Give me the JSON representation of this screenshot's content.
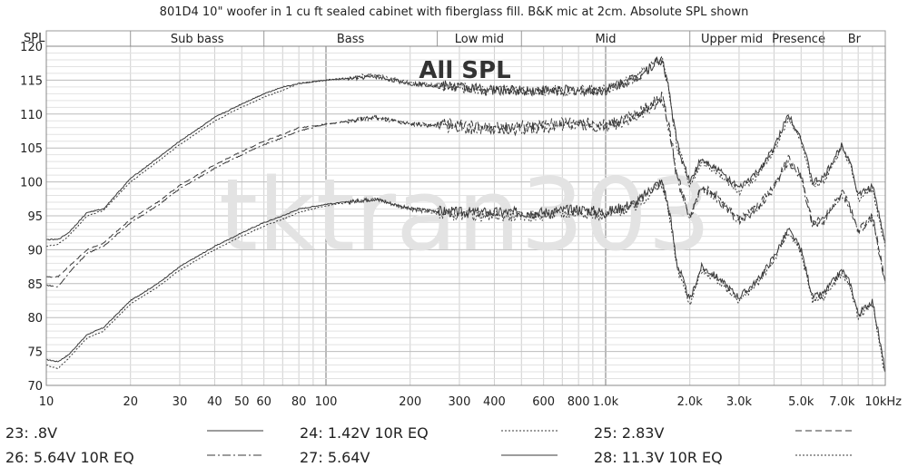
{
  "title": "801D4 10\" woofer in 1 cu ft sealed cabinet with fiberglass fill. B&K mic at 2cm. Absolute SPL shown",
  "watermark": "tktran303",
  "overlay_label": "All SPL",
  "chart_data": {
    "type": "line",
    "title": "801D4 10\" woofer in 1 cu ft sealed cabinet with fiberglass fill. B&K mic at 2cm. Absolute SPL shown",
    "xlabel": "",
    "ylabel": "SPL",
    "xscale": "log",
    "xlim": [
      10,
      10000
    ],
    "ylim": [
      70,
      120
    ],
    "grid": true,
    "x_tick_labels": [
      "10",
      "20",
      "30",
      "40",
      "50",
      "60",
      "80",
      "100",
      "200",
      "300",
      "400",
      "600",
      "800",
      "1.0k",
      "2.0k",
      "3.0k",
      "5.0k",
      "7.0k",
      "10kHz"
    ],
    "x_tick_values": [
      10,
      20,
      30,
      40,
      50,
      60,
      80,
      100,
      200,
      300,
      400,
      600,
      800,
      1000,
      2000,
      3000,
      5000,
      7000,
      10000
    ],
    "y_ticks": [
      70,
      75,
      80,
      85,
      90,
      95,
      100,
      105,
      110,
      115,
      120
    ],
    "bands": [
      {
        "label": "Sub bass",
        "from": 20,
        "to": 60
      },
      {
        "label": "Bass",
        "from": 60,
        "to": 250
      },
      {
        "label": "Low mid",
        "from": 250,
        "to": 500
      },
      {
        "label": "Mid",
        "from": 500,
        "to": 2000
      },
      {
        "label": "Upper mid",
        "from": 2000,
        "to": 4000
      },
      {
        "label": "Presence",
        "from": 4000,
        "to": 6000
      },
      {
        "label": "Br",
        "from": 6000,
        "to": 10000
      }
    ],
    "series": [
      {
        "name": "23: .8V",
        "dash": "none",
        "x": [
          10,
          11,
          12,
          14,
          16,
          20,
          25,
          30,
          40,
          50,
          60,
          70,
          80,
          100,
          150,
          200,
          300,
          400,
          600,
          800,
          1000,
          1300,
          1500,
          1600,
          1700,
          1800,
          2000,
          2200,
          2500,
          3000,
          3500,
          4000,
          4500,
          5000,
          5500,
          6000,
          7000,
          7500,
          8000,
          9000,
          10000
        ],
        "y": [
          73.8,
          73.5,
          74.5,
          77.5,
          78.5,
          82.5,
          85.0,
          87.5,
          90.5,
          92.5,
          94.0,
          95.0,
          96.0,
          96.7,
          97.5,
          96.0,
          95.5,
          95.5,
          95.5,
          96.0,
          95.5,
          97.0,
          99.5,
          100.0,
          95.0,
          88.0,
          82.5,
          87.5,
          86.0,
          83.0,
          85.5,
          89.0,
          93.0,
          90.0,
          83.0,
          83.5,
          87.0,
          85.0,
          80.5,
          82.5,
          72.0
        ]
      },
      {
        "name": "24: 1.42V 10R EQ",
        "dash": "2,2",
        "x": [
          10,
          11,
          12,
          14,
          16,
          20,
          25,
          30,
          40,
          50,
          60,
          70,
          80,
          100,
          150,
          200,
          300,
          400,
          600,
          800,
          1000,
          1300,
          1500,
          1600,
          1700,
          1800,
          2000,
          2200,
          2500,
          3000,
          3500,
          4000,
          4500,
          5000,
          5500,
          6000,
          7000,
          7500,
          8000,
          9000,
          10000
        ],
        "y": [
          73.0,
          72.5,
          74.0,
          77.0,
          78.0,
          82.0,
          84.5,
          87.0,
          90.0,
          92.0,
          93.5,
          94.5,
          95.5,
          96.5,
          97.5,
          96.0,
          95.0,
          95.0,
          95.0,
          95.5,
          95.0,
          96.5,
          99.0,
          99.5,
          94.5,
          87.5,
          82.0,
          87.0,
          85.5,
          82.5,
          85.0,
          88.5,
          92.5,
          89.5,
          82.5,
          83.0,
          86.5,
          84.5,
          80.0,
          82.0,
          71.5
        ]
      },
      {
        "name": "25: 2.83V",
        "dash": "7,4",
        "x": [
          10,
          11,
          12,
          14,
          16,
          20,
          25,
          30,
          40,
          50,
          60,
          70,
          80,
          100,
          150,
          200,
          300,
          400,
          600,
          800,
          1000,
          1300,
          1500,
          1600,
          1700,
          1800,
          2000,
          2200,
          2500,
          3000,
          3500,
          4000,
          4500,
          5000,
          5500,
          6000,
          7000,
          7500,
          8000,
          9000,
          10000
        ],
        "y": [
          86.0,
          86.0,
          87.5,
          90.0,
          91.0,
          94.5,
          97.0,
          99.5,
          102.5,
          104.5,
          106.0,
          107.0,
          108.0,
          108.5,
          109.5,
          108.5,
          108.5,
          108.0,
          108.5,
          109.0,
          108.5,
          110.0,
          112.0,
          112.5,
          107.5,
          101.0,
          95.0,
          99.5,
          98.0,
          94.5,
          96.5,
          99.5,
          103.5,
          101.0,
          94.0,
          94.5,
          98.5,
          96.5,
          93.0,
          95.0,
          85.5
        ]
      },
      {
        "name": "26: 5.64V 10R EQ",
        "dash": "9,3,2,3",
        "x": [
          10,
          11,
          12,
          14,
          16,
          20,
          25,
          30,
          40,
          50,
          60,
          70,
          80,
          100,
          150,
          200,
          300,
          400,
          600,
          800,
          1000,
          1300,
          1500,
          1600,
          1700,
          1800,
          2000,
          2200,
          2500,
          3000,
          3500,
          4000,
          4500,
          5000,
          5500,
          6000,
          7000,
          7500,
          8000,
          9000,
          10000
        ],
        "y": [
          84.8,
          84.5,
          86.5,
          89.5,
          90.5,
          94.0,
          96.5,
          99.0,
          102.0,
          104.0,
          105.5,
          106.5,
          107.5,
          108.5,
          109.5,
          108.5,
          108.0,
          107.5,
          108.0,
          108.5,
          108.0,
          109.5,
          111.5,
          112.0,
          107.0,
          100.5,
          94.5,
          99.0,
          97.5,
          94.0,
          96.0,
          99.0,
          103.0,
          100.5,
          93.5,
          94.0,
          98.0,
          96.0,
          92.5,
          94.5,
          85.0
        ]
      },
      {
        "name": "27: 5.64V",
        "dash": "none",
        "x": [
          10,
          11,
          12,
          14,
          16,
          20,
          25,
          30,
          40,
          50,
          60,
          70,
          80,
          100,
          150,
          200,
          300,
          400,
          600,
          800,
          1000,
          1300,
          1500,
          1600,
          1700,
          1800,
          2000,
          2200,
          2500,
          3000,
          3500,
          4000,
          4500,
          5000,
          5500,
          6000,
          7000,
          7500,
          8000,
          9000,
          10000
        ],
        "y": [
          91.5,
          91.5,
          92.5,
          95.5,
          96.0,
          100.5,
          103.5,
          106.0,
          109.5,
          111.5,
          113.0,
          114.0,
          114.5,
          115.0,
          115.5,
          114.5,
          114.0,
          113.5,
          113.5,
          113.5,
          113.5,
          115.5,
          117.5,
          118.0,
          112.5,
          105.5,
          100.0,
          103.5,
          102.0,
          99.0,
          101.5,
          105.0,
          110.0,
          106.5,
          100.0,
          100.5,
          105.5,
          103.0,
          98.0,
          99.5,
          91.0
        ]
      },
      {
        "name": "28: 11.3V 10R EQ",
        "dash": "2,2",
        "x": [
          10,
          11,
          12,
          14,
          16,
          20,
          25,
          30,
          40,
          50,
          60,
          70,
          80,
          100,
          150,
          200,
          300,
          400,
          600,
          800,
          1000,
          1300,
          1500,
          1600,
          1700,
          1800,
          2000,
          2200,
          2500,
          3000,
          3500,
          4000,
          4500,
          5000,
          5500,
          6000,
          7000,
          7500,
          8000,
          9000,
          10000
        ],
        "y": [
          90.5,
          90.8,
          92.0,
          95.0,
          95.8,
          100.0,
          103.0,
          105.5,
          109.0,
          111.0,
          112.5,
          113.5,
          114.5,
          115.0,
          115.8,
          114.5,
          114.0,
          113.5,
          113.5,
          113.5,
          113.5,
          115.5,
          117.5,
          118.0,
          112.5,
          105.5,
          99.5,
          103.0,
          101.5,
          98.5,
          101.0,
          104.5,
          109.5,
          106.0,
          99.5,
          100.0,
          105.0,
          102.5,
          97.5,
          99.0,
          90.5
        ]
      }
    ]
  }
}
